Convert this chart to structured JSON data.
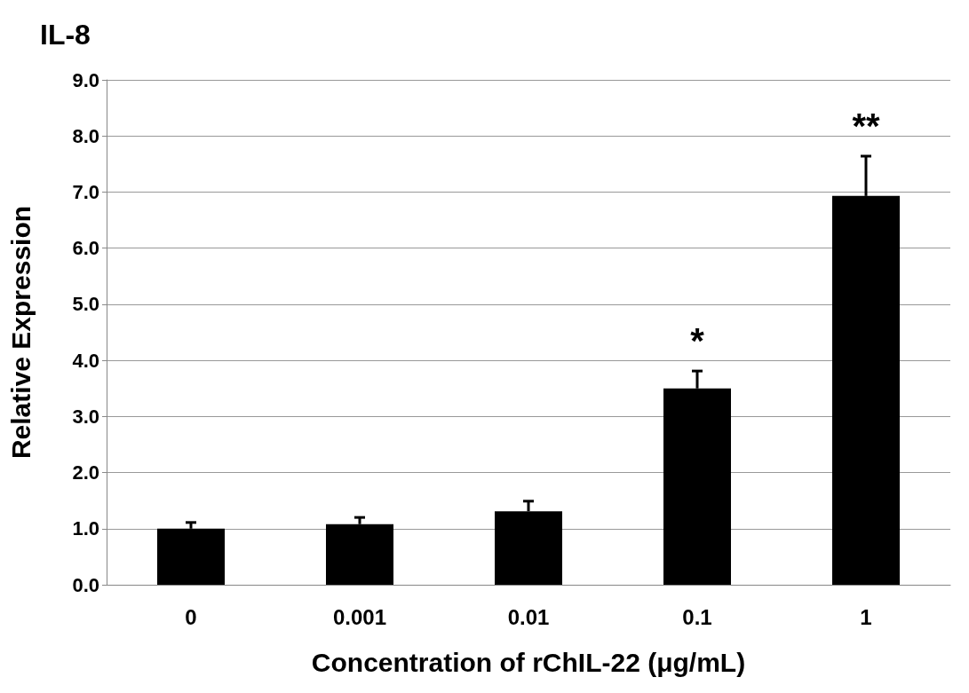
{
  "chart_data": {
    "type": "bar",
    "title": "IL-8",
    "xlabel": "Concentration of rChIL-22 (μg/mL)",
    "ylabel": "Relative Expression",
    "categories": [
      "0",
      "0.001",
      "0.01",
      "0.1",
      "1"
    ],
    "values": [
      1.0,
      1.08,
      1.31,
      3.5,
      6.93
    ],
    "errors": [
      [
        1.0,
        1.11
      ],
      [
        1.08,
        1.2
      ],
      [
        1.31,
        1.49
      ],
      [
        3.5,
        3.81
      ],
      [
        6.93,
        7.64
      ]
    ],
    "color": "#000000",
    "ylim": [
      0,
      9
    ],
    "yticks": [
      {
        "value": 0,
        "label": "0.0"
      },
      {
        "value": 1,
        "label": "1.0"
      },
      {
        "value": 2,
        "label": "2.0"
      },
      {
        "value": 3,
        "label": "3.0"
      },
      {
        "value": 4,
        "label": "4.0"
      },
      {
        "value": 5,
        "label": "5.0"
      },
      {
        "value": 6,
        "label": "6.0"
      },
      {
        "value": 7,
        "label": "7.0"
      },
      {
        "value": 8,
        "label": "8.0"
      },
      {
        "value": 9,
        "label": "9.0"
      }
    ],
    "grid": "y",
    "annotations": [
      "*",
      "**"
    ]
  }
}
